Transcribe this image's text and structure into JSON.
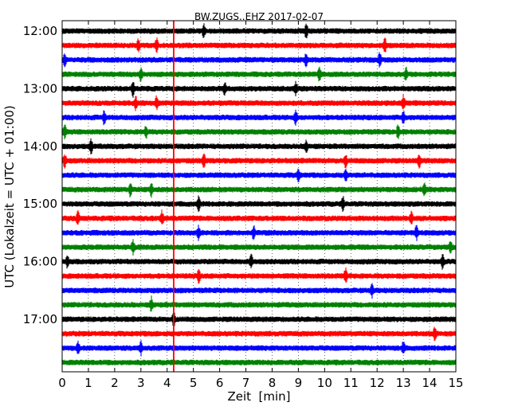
{
  "chart_data": {
    "type": "line",
    "title": "BW.ZUGS..EHZ 2017-02-07",
    "xlabel": "Zeit  [min]",
    "ylabel": "UTC (Lokalzeit = UTC + 01:00)",
    "xlim": [
      0,
      15
    ],
    "x_ticks": [
      "0",
      "1",
      "2",
      "3",
      "4",
      "5",
      "6",
      "7",
      "8",
      "9",
      "10",
      "11",
      "12",
      "13",
      "14",
      "15"
    ],
    "y_ticks": [
      {
        "label": "12:00",
        "row": 0
      },
      {
        "label": "13:00",
        "row": 4
      },
      {
        "label": "14:00",
        "row": 8
      },
      {
        "label": "15:00",
        "row": 12
      },
      {
        "label": "16:00",
        "row": 16
      },
      {
        "label": "17:00",
        "row": 20
      }
    ],
    "rows": 24,
    "row_interval_minutes": 15,
    "colors": [
      "#000000",
      "#ff0000",
      "#0000ff",
      "#008000"
    ],
    "vertical_marker_x": 4.25,
    "marker_color": "#ff0000",
    "grid": "vertical dotted",
    "noise_amplitude": 0.08,
    "spikes": [
      {
        "row": 0,
        "x": [
          5.4,
          9.3
        ]
      },
      {
        "row": 1,
        "x": [
          2.9,
          3.6,
          12.3
        ]
      },
      {
        "row": 2,
        "x": [
          0.1,
          9.3,
          12.1
        ]
      },
      {
        "row": 3,
        "x": [
          3.0,
          9.8,
          13.1
        ]
      },
      {
        "row": 4,
        "x": [
          2.7,
          6.2,
          8.9
        ]
      },
      {
        "row": 5,
        "x": [
          2.8,
          3.6,
          13.0
        ]
      },
      {
        "row": 6,
        "x": [
          1.6,
          8.9,
          13.0
        ]
      },
      {
        "row": 7,
        "x": [
          0.1,
          3.2,
          12.8
        ]
      },
      {
        "row": 8,
        "x": [
          1.1,
          9.3
        ]
      },
      {
        "row": 9,
        "x": [
          0.1,
          5.4,
          10.8,
          13.6
        ]
      },
      {
        "row": 10,
        "x": [
          9.0,
          10.8
        ]
      },
      {
        "row": 11,
        "x": [
          2.6,
          3.4,
          13.8
        ]
      },
      {
        "row": 12,
        "x": [
          5.2,
          10.7
        ]
      },
      {
        "row": 13,
        "x": [
          0.6,
          3.8,
          13.3
        ]
      },
      {
        "row": 14,
        "x": [
          5.2,
          7.3,
          13.5
        ]
      },
      {
        "row": 15,
        "x": [
          2.7,
          14.8
        ]
      },
      {
        "row": 16,
        "x": [
          0.2,
          7.2,
          14.5
        ]
      },
      {
        "row": 17,
        "x": [
          5.2,
          10.8
        ]
      },
      {
        "row": 18,
        "x": [
          11.8
        ]
      },
      {
        "row": 19,
        "x": [
          3.4
        ]
      },
      {
        "row": 20,
        "x": [
          4.25
        ]
      },
      {
        "row": 21,
        "x": [
          14.2
        ]
      },
      {
        "row": 22,
        "x": [
          0.6,
          3.0,
          13.0
        ]
      },
      {
        "row": 23,
        "x": []
      }
    ]
  }
}
